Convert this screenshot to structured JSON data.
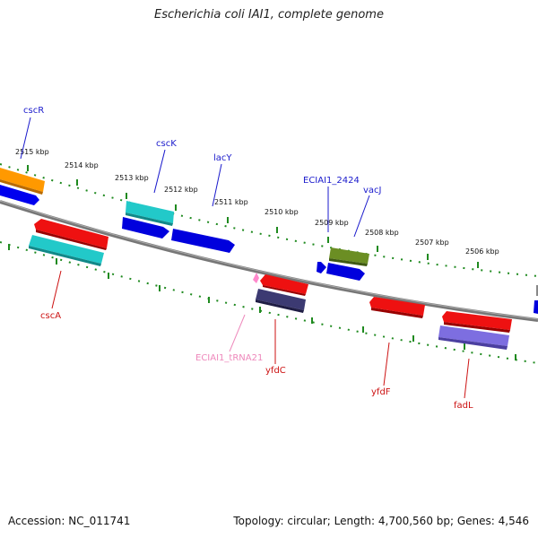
{
  "title": "Escherichia coli IAI1, complete genome",
  "footer": {
    "accession": "Accession: NC_011741",
    "summary": "Topology: circular; Length: 4,700,560 bp; Genes: 4,546"
  },
  "colors": {
    "backbone": "#888888",
    "ticks": "#1f8a1f",
    "label_forward": "#1a1acc",
    "label_reverse": "#cc1111",
    "label_trna": "#ee88bb"
  },
  "kbp_labels": [
    {
      "id": "kbp2515",
      "text": "2515 kbp"
    },
    {
      "id": "kbp2514",
      "text": "2514 kbp"
    },
    {
      "id": "kbp2513",
      "text": "2513 kbp"
    },
    {
      "id": "kbp2512",
      "text": "2512 kbp"
    },
    {
      "id": "kbp2511",
      "text": "2511 kbp"
    },
    {
      "id": "kbp2510",
      "text": "2510 kbp"
    },
    {
      "id": "kbp2509",
      "text": "2509 kbp"
    },
    {
      "id": "kbp2508",
      "text": "2508 kbp"
    },
    {
      "id": "kbp2507",
      "text": "2507 kbp"
    },
    {
      "id": "kbp2506",
      "text": "2506 kbp"
    }
  ],
  "gene_labels": [
    {
      "id": "cscR",
      "text": "cscR",
      "strand": "forward"
    },
    {
      "id": "cscK",
      "text": "cscK",
      "strand": "forward"
    },
    {
      "id": "lacY",
      "text": "lacY",
      "strand": "forward"
    },
    {
      "id": "ECIAI1_2424",
      "text": "ECIAI1_2424",
      "strand": "forward"
    },
    {
      "id": "vacJ",
      "text": "vacJ",
      "strand": "forward"
    },
    {
      "id": "cscA",
      "text": "cscA",
      "strand": "reverse"
    },
    {
      "id": "ECIAI1_tRNA21",
      "text": "ECIAI1_tRNA21",
      "strand": "trna"
    },
    {
      "id": "yfdC",
      "text": "yfdC",
      "strand": "reverse"
    },
    {
      "id": "yfdF",
      "text": "yfdF",
      "strand": "reverse"
    },
    {
      "id": "fadL",
      "text": "fadL",
      "strand": "reverse"
    }
  ]
}
